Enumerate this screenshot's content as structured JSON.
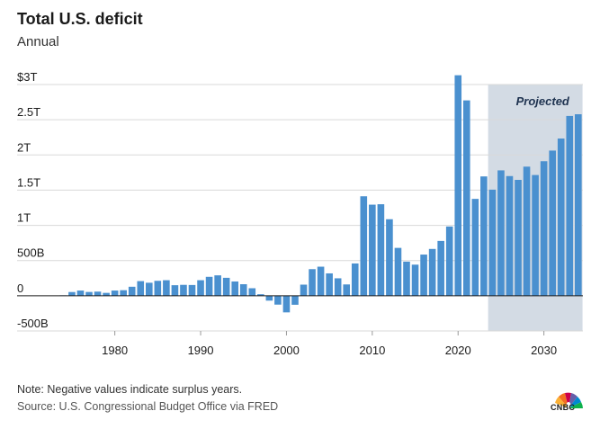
{
  "header": {
    "title": "Total U.S. deficit",
    "subtitle": "Annual"
  },
  "footer": {
    "note": "Note: Negative values indicate surplus years.",
    "source": "Source: U.S. Congressional Budget Office via FRED",
    "logo": "CNBC"
  },
  "colors": {
    "bar": "#4a90cf",
    "projection_band": "#d3dbe4",
    "grid": "#d9d9d9",
    "zero_line": "#1a1a1a"
  },
  "chart_data": {
    "type": "bar",
    "title": "Total U.S. deficit",
    "subtitle": "Annual",
    "xlabel": "",
    "ylabel": "",
    "x": [
      1974,
      1975,
      1976,
      1977,
      1978,
      1979,
      1980,
      1981,
      1982,
      1983,
      1984,
      1985,
      1986,
      1987,
      1988,
      1989,
      1990,
      1991,
      1992,
      1993,
      1994,
      1995,
      1996,
      1997,
      1998,
      1999,
      2000,
      2001,
      2002,
      2003,
      2004,
      2005,
      2006,
      2007,
      2008,
      2009,
      2010,
      2011,
      2012,
      2013,
      2014,
      2015,
      2016,
      2017,
      2018,
      2019,
      2020,
      2021,
      2022,
      2023,
      2024,
      2025,
      2026,
      2027,
      2028,
      2029,
      2030,
      2031,
      2032,
      2033,
      2034
    ],
    "values": [
      0.006,
      0.053,
      0.074,
      0.054,
      0.059,
      0.041,
      0.074,
      0.079,
      0.128,
      0.208,
      0.185,
      0.212,
      0.221,
      0.15,
      0.155,
      0.153,
      0.221,
      0.269,
      0.29,
      0.255,
      0.203,
      0.164,
      0.107,
      0.022,
      -0.069,
      -0.126,
      -0.236,
      -0.128,
      0.158,
      0.378,
      0.413,
      0.318,
      0.248,
      0.161,
      0.459,
      1.413,
      1.294,
      1.3,
      1.087,
      0.68,
      0.485,
      0.442,
      0.585,
      0.665,
      0.779,
      0.984,
      3.132,
      2.775,
      1.376,
      1.695,
      1.507,
      1.781,
      1.7,
      1.646,
      1.834,
      1.715,
      1.911,
      2.062,
      2.233,
      2.554,
      2.578
    ],
    "ylim": [
      -0.5,
      3.0
    ],
    "y_ticks": [
      {
        "value": 3.0,
        "label": "$3T"
      },
      {
        "value": 2.5,
        "label": "2.5T"
      },
      {
        "value": 2.0,
        "label": "2T"
      },
      {
        "value": 1.5,
        "label": "1.5T"
      },
      {
        "value": 1.0,
        "label": "1T"
      },
      {
        "value": 0.5,
        "label": "500B"
      },
      {
        "value": 0.0,
        "label": "0"
      },
      {
        "value": -0.5,
        "label": "-500B"
      }
    ],
    "x_ticks": [
      1980,
      1990,
      2000,
      2010,
      2020,
      2030
    ],
    "projection": {
      "start": 2023.5,
      "end": 2034.5,
      "label": "Projected"
    },
    "grid": true,
    "legend": "none"
  }
}
